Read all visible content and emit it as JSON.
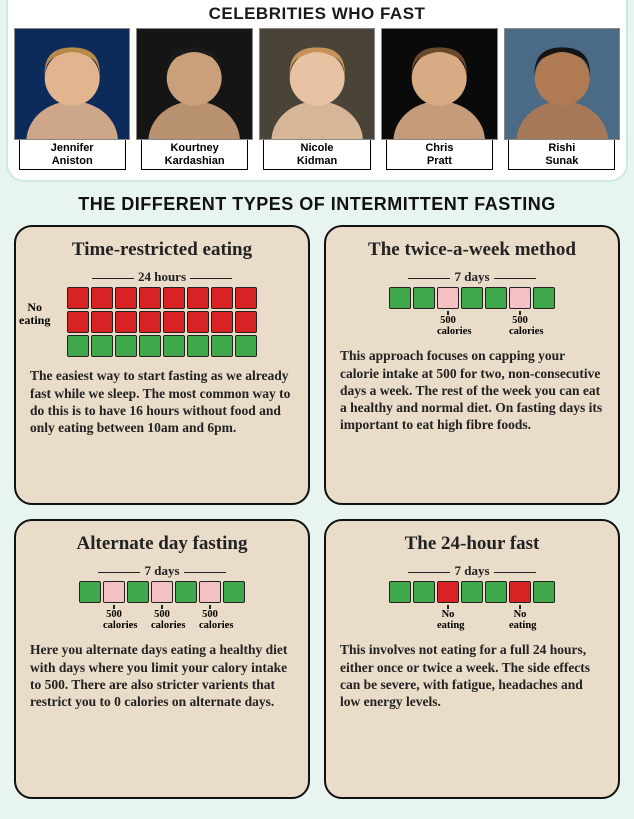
{
  "colors": {
    "page_bg": "#e8f4f0",
    "card_bg": "#e9dcc8",
    "card_border": "#111111",
    "cell_green": "#3fa84a",
    "cell_red": "#d82324",
    "cell_pink": "#f3c0c3",
    "cell_border": "#222222"
  },
  "celebrities": {
    "title": "CELEBRITIES WHO FAST",
    "items": [
      {
        "name": "Jennifer\nAniston",
        "bg": "#0c2a5a",
        "skin": "#e3b58f",
        "hair": "#b88a4a"
      },
      {
        "name": "Kourtney\nKardashian",
        "bg": "#151515",
        "skin": "#caa07a",
        "hair": "#1a1a1a"
      },
      {
        "name": "Nicole\nKidman",
        "bg": "#4a4438",
        "skin": "#e7c3a3",
        "hair": "#c7925a"
      },
      {
        "name": "Chris\nPratt",
        "bg": "#0a0a0a",
        "skin": "#d9ab85",
        "hair": "#6a4a2c"
      },
      {
        "name": "Rishi\nSunak",
        "bg": "#4a6a86",
        "skin": "#b07a52",
        "hair": "#151515"
      }
    ]
  },
  "types": {
    "title": "THE DIFFERENT TYPES OF INTERMITTENT FASTING",
    "cards": [
      {
        "title": "Time-restricted eating",
        "period_label": "24 hours",
        "side_label": "No\neating",
        "rows": 3,
        "cols": 8,
        "cells": [
          [
            "red",
            "red",
            "red",
            "red",
            "red",
            "red",
            "red",
            "red"
          ],
          [
            "red",
            "red",
            "red",
            "red",
            "red",
            "red",
            "red",
            "red"
          ],
          [
            "green",
            "green",
            "green",
            "green",
            "green",
            "green",
            "green",
            "green"
          ]
        ],
        "sub_labels": [
          "",
          "",
          "",
          "",
          "",
          "",
          "",
          ""
        ],
        "text": "The easiest way to start fasting as we already fast while we sleep.  The most common way to do this is to have 16 hours without food and only eating between 10am and 6pm."
      },
      {
        "title": "The twice-a-week method",
        "period_label": "7 days",
        "side_label": "",
        "rows": 1,
        "cols": 7,
        "cells": [
          [
            "green",
            "green",
            "pink",
            "green",
            "green",
            "pink",
            "green"
          ]
        ],
        "sub_labels": [
          "",
          "",
          "500\ncalories",
          "",
          "",
          "500\ncalories",
          ""
        ],
        "text": "This approach focuses on capping your calorie intake at 500 for two, non-consecutive days a week.  The rest of the week you can eat a healthy and normal diet.  On fasting days its important to eat high fibre foods."
      },
      {
        "title": "Alternate day fasting",
        "period_label": "7 days",
        "side_label": "",
        "rows": 1,
        "cols": 7,
        "cells": [
          [
            "green",
            "pink",
            "green",
            "pink",
            "green",
            "pink",
            "green"
          ]
        ],
        "sub_labels": [
          "",
          "500\ncalories",
          "",
          "500\ncalories",
          "",
          "500\ncalories",
          ""
        ],
        "text": "Here you alternate days eating a healthy diet with days where you limit your calory intake to 500.  There are also stricter varients that restrict you to 0 calories on alternate days."
      },
      {
        "title": "The 24-hour fast",
        "period_label": "7 days",
        "side_label": "",
        "rows": 1,
        "cols": 7,
        "cells": [
          [
            "green",
            "green",
            "red",
            "green",
            "green",
            "red",
            "green"
          ]
        ],
        "sub_labels": [
          "",
          "",
          "No\neating",
          "",
          "",
          "No\neating",
          ""
        ],
        "text": "This involves not eating for a full 24 hours, either once or twice a week.  The side effects can be severe, with fatigue, headaches and low energy levels."
      }
    ]
  }
}
